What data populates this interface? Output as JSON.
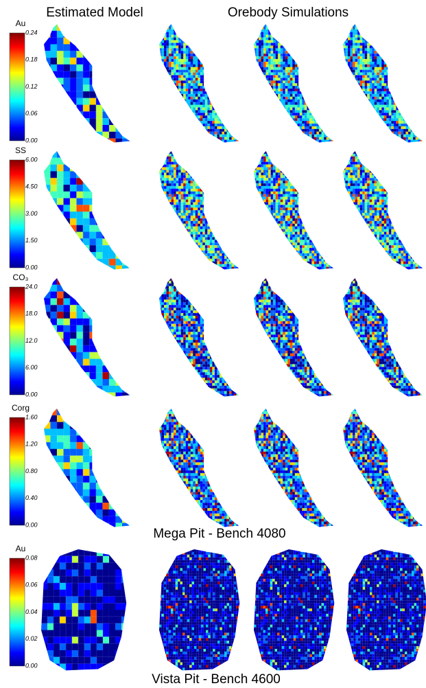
{
  "header": {
    "left_title": "Estimated Model",
    "right_title": "Orebody Simulations"
  },
  "panels": [
    {
      "variable": "Au",
      "scale_labels": [
        "0.24",
        "0.18",
        "0.12",
        "0.06",
        "0.00"
      ]
    },
    {
      "variable": "SS",
      "scale_labels": [
        "6.00",
        "4.50",
        "3.00",
        "1.50",
        "0.00"
      ]
    },
    {
      "variable": "CO₃",
      "scale_labels": [
        "24.0",
        "18.0",
        "12.0",
        "6.00",
        "0.00"
      ]
    },
    {
      "variable": "Corg",
      "scale_labels": [
        "1.60",
        "1.20",
        "0.80",
        "0.40",
        "0.00"
      ]
    },
    {
      "variable": "Au",
      "scale_labels": [
        "0.08",
        "0.06",
        "0.04",
        "0.02",
        "0.00"
      ]
    }
  ],
  "captions": {
    "mega_pit": "Mega Pit - Bench 4080",
    "vista_pit": "Vista Pit - Bench 4600"
  }
}
